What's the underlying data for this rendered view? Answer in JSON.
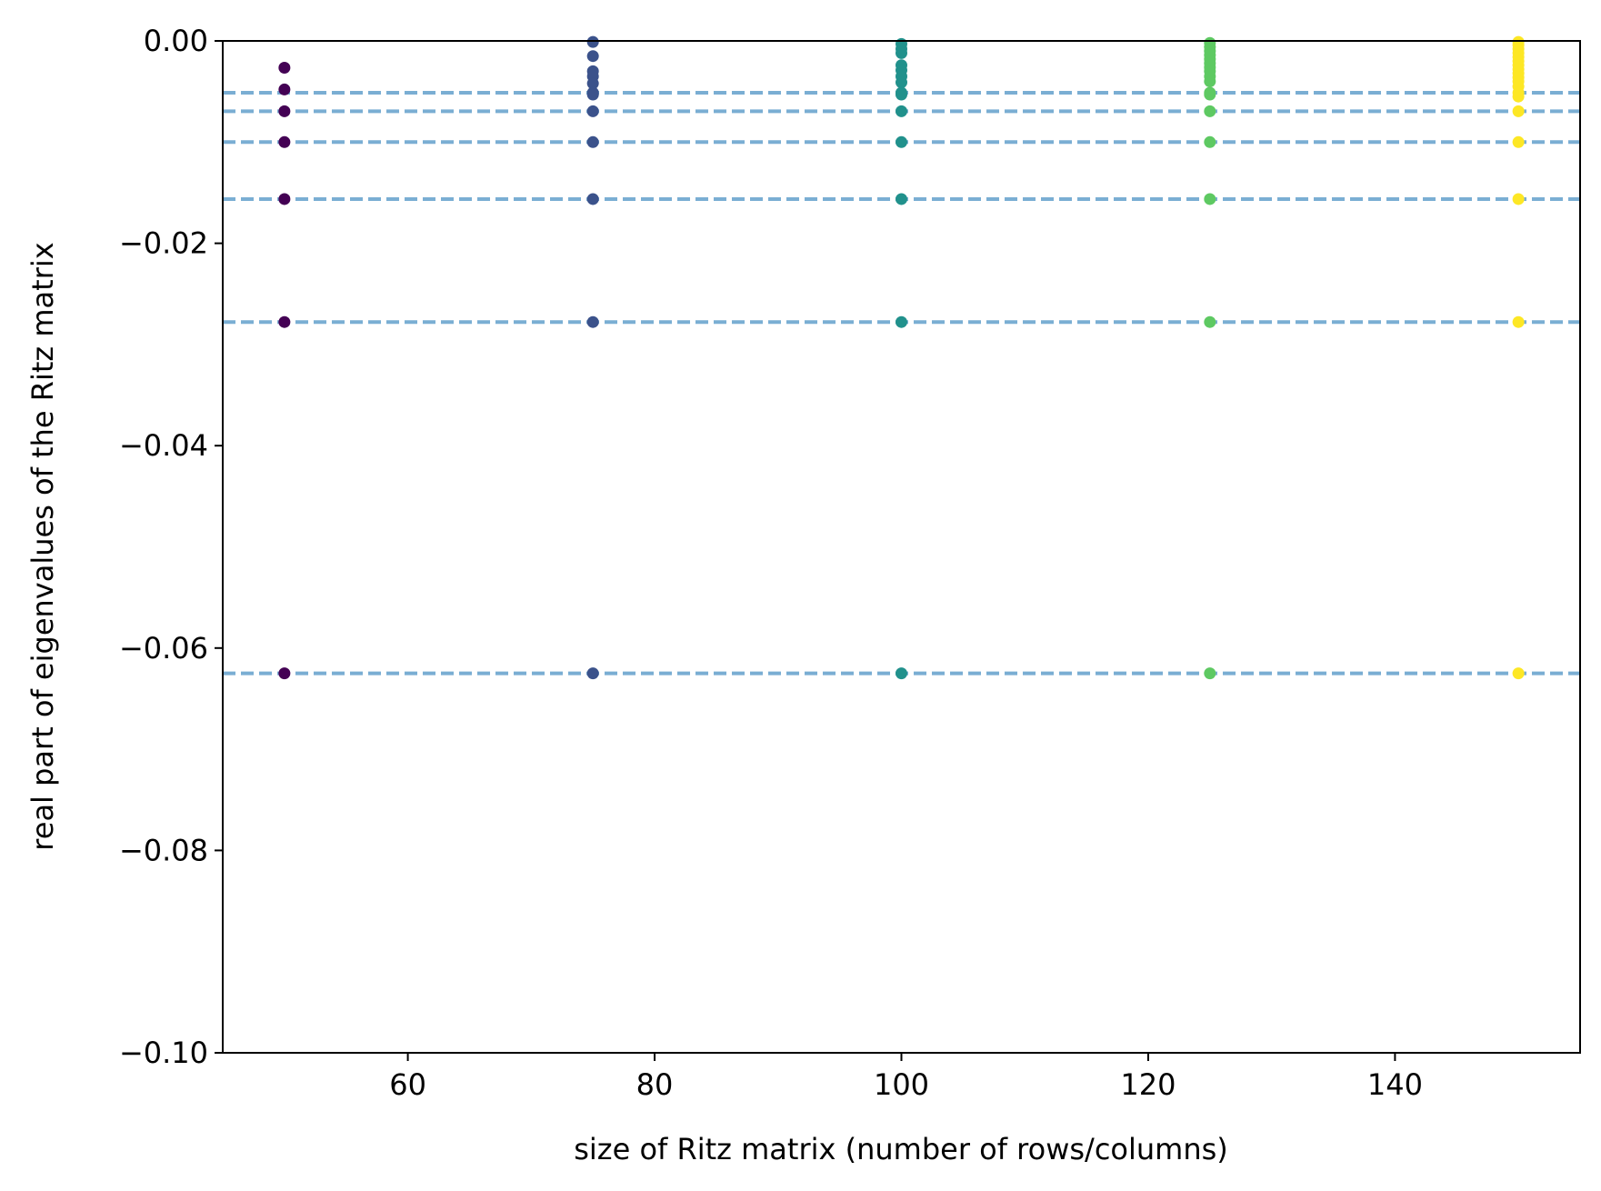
{
  "chart_data": {
    "type": "scatter",
    "title": "",
    "xlabel": "size of Ritz matrix (number of rows/columns)",
    "ylabel": "real part of eigenvalues of the Ritz matrix",
    "xlim": [
      45,
      155
    ],
    "ylim": [
      -0.1,
      0.0
    ],
    "xticks": [
      60,
      80,
      100,
      120,
      140
    ],
    "yticks": [
      -0.1,
      -0.08,
      -0.06,
      -0.04,
      -0.02,
      0.0
    ],
    "xtick_labels": [
      "60",
      "80",
      "100",
      "120",
      "140"
    ],
    "ytick_labels": [
      "−0.10",
      "−0.08",
      "−0.06",
      "−0.04",
      "−0.02",
      "0.00"
    ],
    "grid": false,
    "legend": "none",
    "reference_lines": {
      "y": [
        -0.00512,
        -0.00695,
        -0.01,
        -0.01563,
        -0.02778,
        -0.0625
      ],
      "color": "#7aaed3",
      "style": "dashed"
    },
    "series": [
      {
        "x": 50,
        "color": "#440154",
        "y": [
          -0.00265,
          -0.0048,
          -0.00695,
          -0.01,
          -0.01563,
          -0.02778,
          -0.0625
        ]
      },
      {
        "x": 75,
        "color": "#3b528b",
        "y": [
          -0.0001,
          -0.0015,
          -0.003,
          -0.0035,
          -0.0042,
          -0.00512,
          -0.0053,
          -0.00695,
          -0.01,
          -0.01563,
          -0.02778,
          -0.0625
        ]
      },
      {
        "x": 100,
        "color": "#21918c",
        "y": [
          -0.0003,
          -0.0008,
          -0.0012,
          -0.0024,
          -0.0029,
          -0.0035,
          -0.0041,
          -0.00512,
          -0.0053,
          -0.00695,
          -0.01,
          -0.01563,
          -0.02778,
          -0.0625
        ]
      },
      {
        "x": 125,
        "color": "#5ec962",
        "y": [
          -0.0002,
          -0.0006,
          -0.001,
          -0.0014,
          -0.0018,
          -0.0022,
          -0.0026,
          -0.003,
          -0.0035,
          -0.004,
          -0.00512,
          -0.0053,
          -0.00695,
          -0.01,
          -0.01563,
          -0.02778,
          -0.0625
        ]
      },
      {
        "x": 150,
        "color": "#fde725",
        "y": [
          -0.0001,
          -0.0004,
          -0.0008,
          -0.0012,
          -0.0016,
          -0.002,
          -0.0024,
          -0.0028,
          -0.0032,
          -0.0036,
          -0.004,
          -0.0045,
          -0.00512,
          -0.0055,
          -0.00695,
          -0.01,
          -0.01563,
          -0.02778,
          -0.0625
        ]
      }
    ]
  }
}
